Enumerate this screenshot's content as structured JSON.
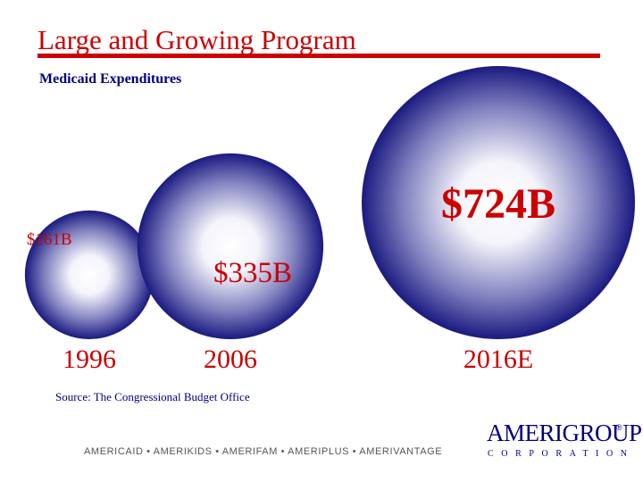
{
  "header": {
    "title": "Large and Growing Program",
    "subtitle": "Medicaid Expenditures"
  },
  "chart_data": {
    "type": "bubble",
    "title": "",
    "ylabel": "",
    "categories": [
      "1996",
      "2006",
      "2016E"
    ],
    "values": [
      161,
      335,
      724
    ],
    "value_labels": [
      "$161B",
      "$335B",
      "$724B"
    ],
    "unit": "$B"
  },
  "footer": {
    "source": "Source:  The Congressional Budget Office",
    "brands": "AMERICAID • AMERIKIDS • AMERIFAM • AMERIPLUS • AMERIVANTAGE",
    "logo_name": "AMERIGROUP",
    "logo_mark": "®",
    "logo_sub": "CORPORATION"
  },
  "colors": {
    "title": "#cc0000",
    "value_label": "#cc0000",
    "year_label": "#cc0000",
    "bubble_edge": "#1a1a80",
    "bubble_center": "#ffffff",
    "text_navy": "#000080"
  }
}
